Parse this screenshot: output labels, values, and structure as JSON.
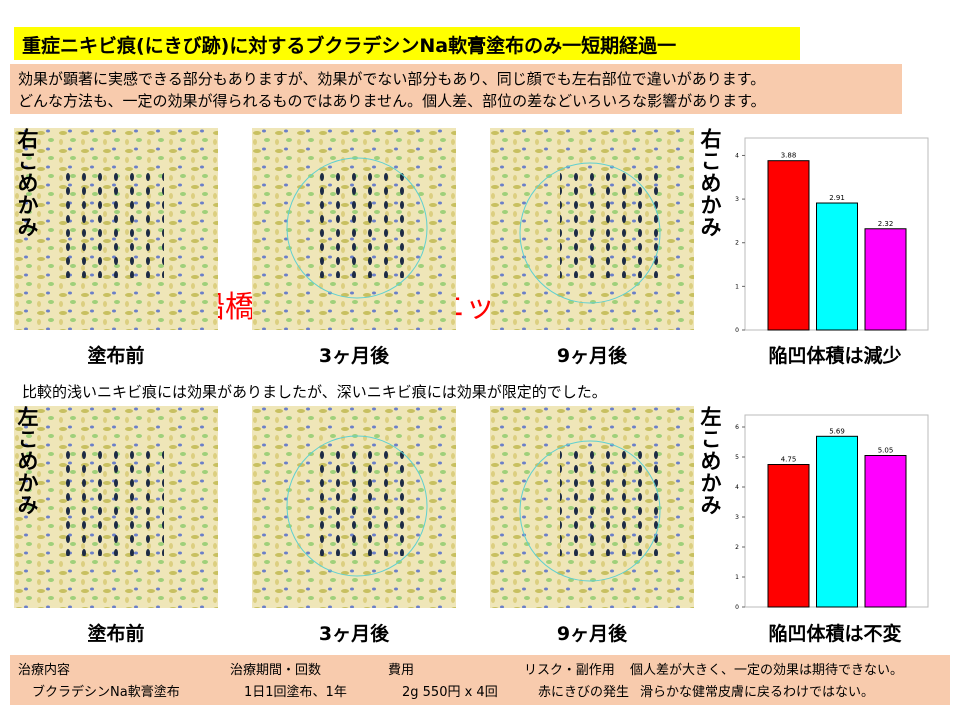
{
  "header": {
    "title": "重症ニキビ痕(にきび跡)に対するブクラデシンNa軟膏塗布のみ一短期経過一",
    "notes": [
      "効果が顕著に実感できる部分もありますが、効果がでない部分もあり、同じ顔でも左右部位で違いがあります。",
      "どんな方法も、一定の効果が得られるものではありません。個人差、部位の差などいろいろな影響があります。"
    ]
  },
  "watermark": "船橋ゆーかりクリニック",
  "comment": "比較的浅いニキビ痕には効果がありましたが、深いニキビ痕には効果が限定的でした。",
  "rows": [
    {
      "label": "右こめかみ",
      "captions": [
        "塗布前",
        "3ヶ月後",
        "9ヶ月後"
      ],
      "chart_caption": "陥凹体積は減少"
    },
    {
      "label": "左こめかみ",
      "captions": [
        "塗布前",
        "3ヶ月後",
        "9ヶ月後"
      ],
      "chart_caption": "陥凹体積は不変"
    }
  ],
  "chart_data": [
    {
      "type": "bar",
      "values": [
        3.88,
        2.91,
        2.32
      ],
      "colors": [
        "#ff0000",
        "#00ffff",
        "#ff00ff"
      ],
      "ylim": [
        0,
        4.4
      ],
      "yticks": [
        0,
        1,
        2,
        3,
        4
      ]
    },
    {
      "type": "bar",
      "values": [
        4.75,
        5.69,
        5.05
      ],
      "colors": [
        "#ff0000",
        "#00ffff",
        "#ff00ff"
      ],
      "ylim": [
        0,
        6.4
      ],
      "yticks": [
        0,
        1,
        2,
        3,
        4,
        5,
        6
      ]
    }
  ],
  "footer": {
    "columns": [
      [
        "治療内容",
        "ブクラデシンNa軟膏塗布"
      ],
      [
        "治療期間・回数",
        "1日1回塗布、1年"
      ],
      [
        "費用",
        "2g 550円 x 4回"
      ],
      [
        "リスク・副作用",
        "赤にきびの発生"
      ],
      [
        "個人差が大きく、一定の効果は期待できない。",
        "滑らかな健常皮膚に戻るわけではない。"
      ]
    ]
  }
}
